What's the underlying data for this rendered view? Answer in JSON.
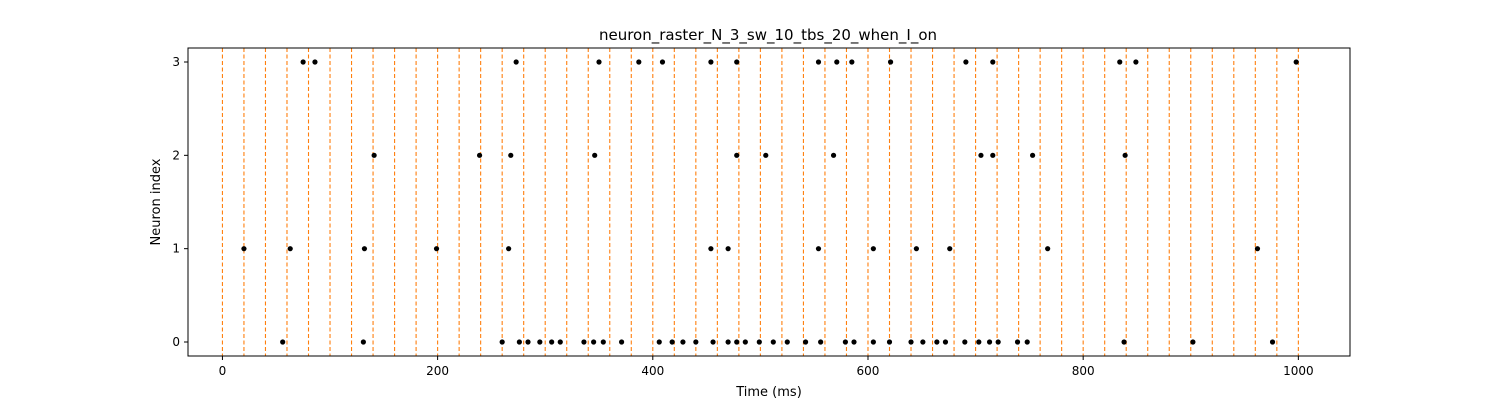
{
  "chart_data": {
    "type": "scatter",
    "title": "neuron_raster_N_3_sw_10_tbs_20_when_I_on",
    "xlabel": "Time (ms)",
    "ylabel": "Neuron index",
    "xlim": [
      -32,
      1048
    ],
    "ylim": [
      -0.15,
      3.15
    ],
    "xticks": [
      0,
      200,
      400,
      600,
      800,
      1000
    ],
    "yticks": [
      0,
      1,
      2,
      3
    ],
    "marker_color": "#000000",
    "vline_color": "#ff7f0e",
    "vlines": [
      0,
      20,
      40,
      60,
      80,
      100,
      120,
      140,
      160,
      180,
      200,
      220,
      240,
      260,
      280,
      300,
      320,
      340,
      360,
      380,
      400,
      420,
      440,
      460,
      480,
      500,
      520,
      540,
      560,
      580,
      600,
      620,
      640,
      660,
      680,
      700,
      720,
      740,
      760,
      780,
      800,
      820,
      840,
      860,
      880,
      900,
      920,
      940,
      960,
      980,
      1000
    ],
    "series": [
      {
        "neuron": 0,
        "spikes": [
          56,
          131,
          260,
          276,
          284,
          295,
          306,
          314,
          336,
          345,
          354,
          371,
          406,
          418,
          428,
          440,
          456,
          470,
          478,
          486,
          499,
          512,
          525,
          542,
          556,
          579,
          587,
          605,
          620,
          640,
          651,
          664,
          672,
          690,
          703,
          713,
          721,
          739,
          748,
          838,
          902,
          976
        ]
      },
      {
        "neuron": 1,
        "spikes": [
          20,
          63,
          132,
          199,
          266,
          454,
          470,
          554,
          605,
          645,
          676,
          767,
          962
        ]
      },
      {
        "neuron": 2,
        "spikes": [
          141,
          239,
          268,
          346,
          478,
          505,
          568,
          705,
          716,
          753,
          839
        ]
      },
      {
        "neuron": 3,
        "spikes": [
          75,
          86,
          273,
          350,
          387,
          409,
          454,
          478,
          554,
          571,
          585,
          621,
          691,
          716,
          834,
          849,
          998
        ]
      }
    ]
  }
}
